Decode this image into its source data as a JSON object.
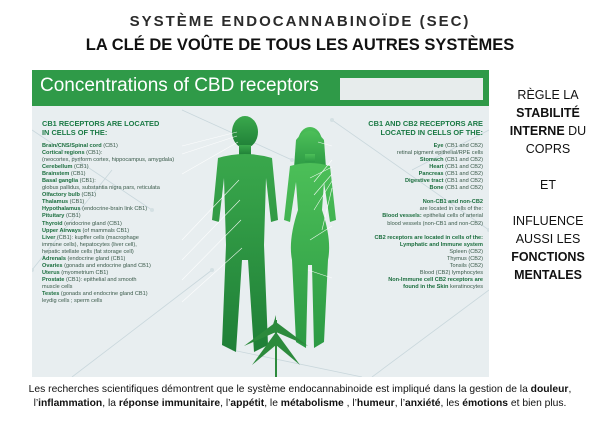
{
  "title_line1": "SYSTÈME ENDOCANNABINOÏDE (SEC)",
  "title_line2": "LA CLÉ DE VOÛTE DE TOUS LES AUTRES SYSTÈMES",
  "infographic": {
    "banner_title": "Concentrations of CBD receptors",
    "left_heading": [
      "CB1 RECEPTORS ARE LOCATED",
      "IN CELLS OF THE:"
    ],
    "left_items": [
      {
        "bold": "Brain/CNS/Spinal cord",
        "rest": " (CB1)"
      },
      {
        "bold": "Cortical regions",
        "rest": " (CB1):"
      },
      {
        "bold": "",
        "rest": "(neocortex, pyriform cortex, hippocampus, amygdala)"
      },
      {
        "bold": "Cerebellum",
        "rest": " (CB1)"
      },
      {
        "bold": "Brainstem",
        "rest": " (CB1)"
      },
      {
        "bold": "Basal ganglia",
        "rest": " (CB1):"
      },
      {
        "bold": "",
        "rest": "globus pallidus, substantia nigra pars, reticulata"
      },
      {
        "bold": "Olfactory bulb",
        "rest": " (CB1)"
      },
      {
        "bold": "Thalamus",
        "rest": " (CB1)"
      },
      {
        "bold": "Hypothalamus",
        "rest": " (endocrine-brain link CB1)"
      },
      {
        "bold": "Pituitary",
        "rest": " (CB1)"
      },
      {
        "bold": "Thyroid",
        "rest": " (endocrine gland (CB1)"
      },
      {
        "bold": "Upper Airways",
        "rest": " (of mammals CB1)"
      },
      {
        "bold": "Liver",
        "rest": " (CB1): kupffer cells (macrophage"
      },
      {
        "bold": "",
        "rest": "immune cells), hepatocytes (liver cell),"
      },
      {
        "bold": "",
        "rest": "hepatic stellate cells (fat storage cell)"
      },
      {
        "bold": "Adrenals",
        "rest": " (endocrine gland (CB1)"
      },
      {
        "bold": "Ovaries",
        "rest": " (gonads and endocrine gland CB1)"
      },
      {
        "bold": "Uterus",
        "rest": " (myometrium CB1)"
      },
      {
        "bold": "Prostate",
        "rest": " (CB1): epithelial and smooth"
      },
      {
        "bold": "",
        "rest": "muscle cells"
      },
      {
        "bold": "Testes",
        "rest": " (gonads and endocrine gland CB1)"
      },
      {
        "bold": "",
        "rest": "leydig cells ; sperm cells"
      }
    ],
    "right_heading": [
      "CB1 AND CB2 RECEPTORS ARE",
      "LOCATED IN CELLS OF THE:"
    ],
    "right_items": [
      {
        "bold": "Eye",
        "rest": " (CB1 and CB2)",
        "lead": ""
      },
      {
        "bold": "",
        "rest": "retinal pigment epithelial/RPE cells",
        "lead": ""
      },
      {
        "bold": "Stomach",
        "rest": " (CB1 and CB2)",
        "lead": ""
      },
      {
        "bold": "Heart",
        "rest": " (CB1 and CB2)",
        "lead": ""
      },
      {
        "bold": "Pancreas",
        "rest": " (CB1 and CB2)",
        "lead": ""
      },
      {
        "bold": "Digestive tract",
        "rest": " (CB1 and CB2)",
        "lead": ""
      },
      {
        "bold": "Bone",
        "rest": " (CB1 and CB2)",
        "lead": ""
      },
      {
        "bold": "",
        "rest": "",
        "lead": ""
      },
      {
        "bold": "Non-CB1 and non-CB2",
        "rest": "",
        "lead": ""
      },
      {
        "bold": "",
        "rest": "are located in cells of the:",
        "lead": ""
      },
      {
        "bold": "Blood vessels:",
        "rest": " epithelial cells of arterial",
        "lead": ""
      },
      {
        "bold": "",
        "rest": "blood vessels (non-CB1 and non-CB2)",
        "lead": ""
      },
      {
        "bold": "",
        "rest": "",
        "lead": ""
      },
      {
        "bold": "CB2 receptors are located in cells of the:",
        "rest": "",
        "lead": ""
      },
      {
        "bold": "Lymphatic and Immune system",
        "rest": "",
        "lead": ""
      },
      {
        "bold": "",
        "rest": "Spleen (CB2)",
        "lead": ""
      },
      {
        "bold": "",
        "rest": "Thymus (CB2)",
        "lead": ""
      },
      {
        "bold": "",
        "rest": "Tonsils (CB2)",
        "lead": ""
      },
      {
        "bold": "",
        "rest": "Blood (CB2) lymphocytes",
        "lead": ""
      },
      {
        "bold": "Non-Immune cell CB2 receptors are",
        "rest": "",
        "lead": ""
      },
      {
        "bold": "found in the Skin",
        "rest": " keratinocytes",
        "lead": ""
      }
    ]
  },
  "side_text": {
    "line1": "RÈGLE LA",
    "line2": "STABILITÉ",
    "line3a": "INTERNE",
    "line3b": " DU",
    "line4": "COPRS",
    "line5": "ET",
    "line6": "INFLUENCE",
    "line7": "AUSSI LES",
    "line8": "FONCTIONS",
    "line9": "MENTALES"
  },
  "footer": {
    "p1": "Les recherches scientifiques démontrent que le système endocannabinoide est  impliqué dans la gestion de la ",
    "douleur": "douleur",
    "p2": ",",
    "p3": "l’",
    "inflammation": "inflammation",
    "p4": ", la ",
    "reponse": "réponse immunitaire",
    "p5": ",  l’",
    "appetit": "appétit",
    "p6": ", le ",
    "metabolisme": "métabolisme",
    "p7": " , l’",
    "humeur": "humeur",
    "p8": ", l’",
    "anxiete": "anxiété",
    "p9": ", les ",
    "emotions": "émotions",
    "p10": " et bien plus."
  },
  "colors": {
    "banner_green": "#2f9a48",
    "figure_green": "#2e9a45",
    "heading_green": "#1b7a45",
    "panel_bg": "#e8eef0"
  }
}
